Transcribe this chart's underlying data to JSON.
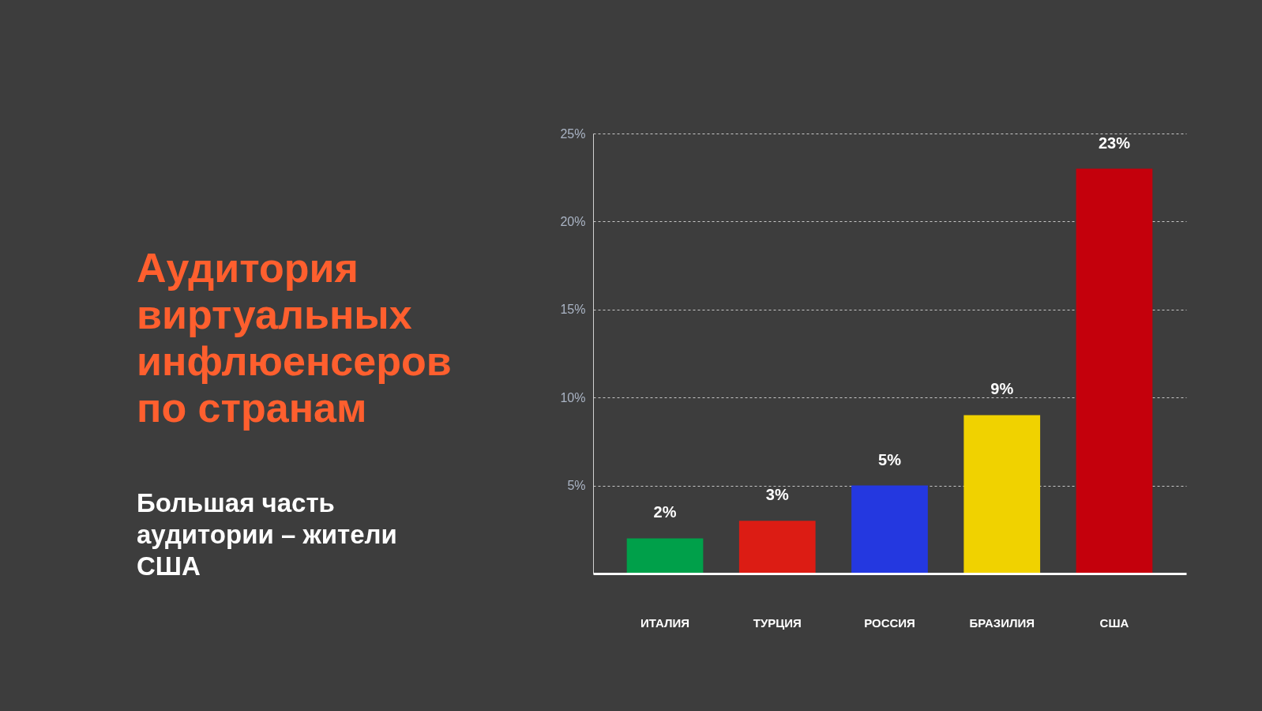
{
  "chart_data": {
    "type": "bar",
    "title": "Аудитория виртуальных инфлюенсеров по странам",
    "subtitle": "Большая часть аудитории – жители США",
    "categories": [
      "ИТАЛИЯ",
      "ТУРЦИЯ",
      "РОССИЯ",
      "БРАЗИЛИЯ",
      "США"
    ],
    "values": [
      2,
      3,
      5,
      9,
      23
    ],
    "colors": [
      "#00a04a",
      "#dc1c14",
      "#2438e0",
      "#f0d200",
      "#c4000c"
    ],
    "value_labels": [
      "2%",
      "3%",
      "5%",
      "9%",
      "23%"
    ],
    "ylim": [
      0,
      25
    ],
    "yticks": [
      {
        "value": 5,
        "label": "5%"
      },
      {
        "value": 10,
        "label": "10%"
      },
      {
        "value": 15,
        "label": "15%"
      },
      {
        "value": 20,
        "label": "20%"
      },
      {
        "value": 25,
        "label": "25%"
      }
    ],
    "grid": "y"
  }
}
